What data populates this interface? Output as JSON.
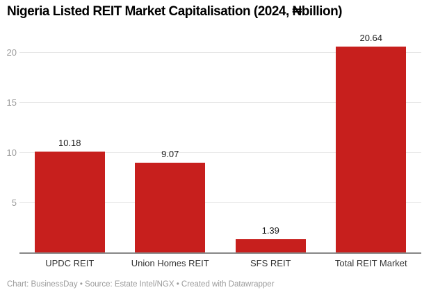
{
  "page": {
    "title": "Nigeria Listed REIT Market Capitalisation (2024, ₦billion)",
    "footer": "Chart: BusinessDay • Source: Estate Intel/NGX • Created with Datawrapper"
  },
  "colors": {
    "bar": "#c71f1d",
    "gridline": "#e7e7e7",
    "baseline": "#878787",
    "axis_tick_label": "#9b9b9b",
    "value_label": "#1d1d1d",
    "category_label": "#333333",
    "footer_text": "#9b9b9b",
    "title_text": "#000000",
    "background": "#ffffff"
  },
  "chart_data": {
    "type": "bar",
    "title": "Nigeria Listed REIT Market Capitalisation (2024, ₦billion)",
    "categories": [
      "UPDC REIT",
      "Union Homes REIT",
      "SFS REIT",
      "Total REIT Market"
    ],
    "values": [
      10.18,
      9.07,
      1.39,
      20.64
    ],
    "value_labels": [
      "10.18",
      "9.07",
      "1.39",
      "20.64"
    ],
    "xlabel": "",
    "ylabel": "",
    "ylim": [
      0,
      21
    ],
    "yticks": [
      5,
      10,
      15,
      20
    ],
    "grid": true,
    "legend": "none",
    "bar_color": "#c71f1d",
    "source_note": "Chart: BusinessDay • Source: Estate Intel/NGX • Created with Datawrapper"
  }
}
